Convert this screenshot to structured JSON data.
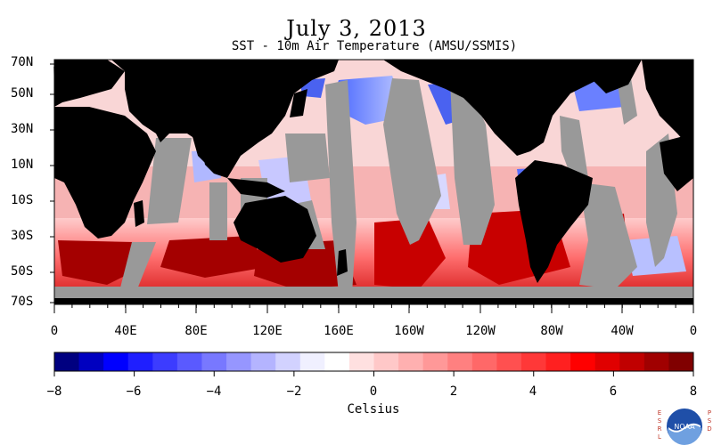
{
  "title": "July 3, 2013",
  "subtitle": "SST - 10m Air Temperature (AMSU/SSMIS)",
  "map": {
    "lat_labels": [
      "70N",
      "50N",
      "30N",
      "10N",
      "10S",
      "30S",
      "50S",
      "70S"
    ],
    "lon_labels": [
      "0",
      "40E",
      "80E",
      "120E",
      "160E",
      "160W",
      "120W",
      "80W",
      "40W",
      "0"
    ],
    "colors": {
      "land": "#000000",
      "no_data": "#999999",
      "cold": "#3b5bf0",
      "warm": "#ff3030",
      "very_warm": "#a00000"
    }
  },
  "colorbar": {
    "min": -8,
    "max": 8,
    "tick_labels": [
      "−8",
      "−6",
      "−4",
      "−2",
      "0",
      "2",
      "4",
      "6",
      "8"
    ],
    "units": "Celsius",
    "colors": [
      "#000080",
      "#0000c0",
      "#0000ff",
      "#1f1fff",
      "#3c3cff",
      "#5a5aff",
      "#7878ff",
      "#9696ff",
      "#b4b4ff",
      "#d2d2ff",
      "#f0f0ff",
      "#ffffff",
      "#ffe0e0",
      "#ffc8c8",
      "#ffb0b0",
      "#ff9898",
      "#ff8080",
      "#ff6868",
      "#ff5050",
      "#ff3838",
      "#ff2020",
      "#ff0000",
      "#e00000",
      "#c00000",
      "#a00000",
      "#800000"
    ]
  },
  "logo": {
    "left_letters": [
      "E",
      "S",
      "R",
      "L"
    ],
    "right_letters": [
      "P",
      "S",
      "D"
    ],
    "text": "NOAA"
  }
}
